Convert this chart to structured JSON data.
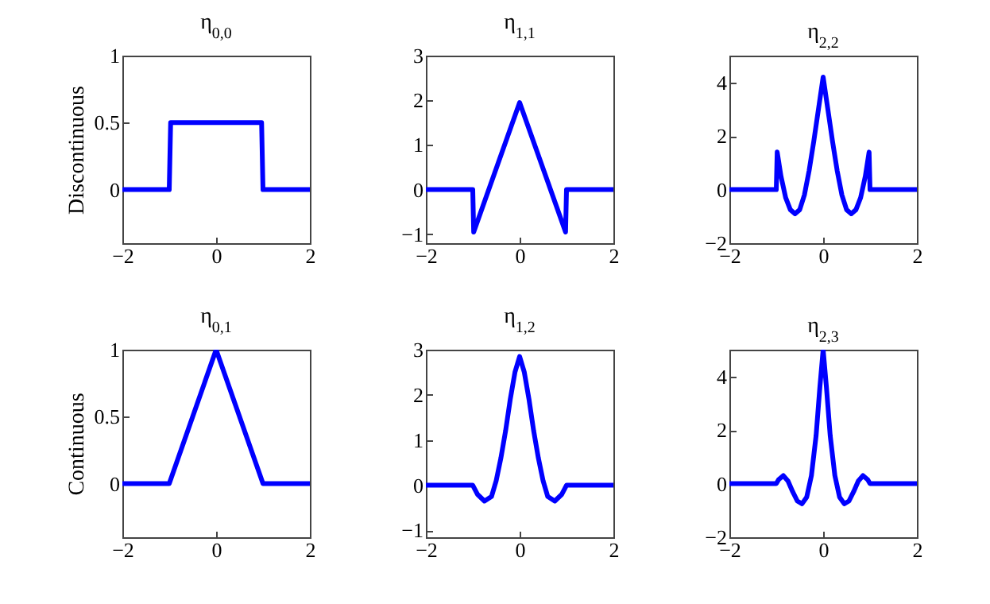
{
  "chart_data": [
    {
      "type": "line",
      "title": "η$_{0,0}$",
      "ylabel": "Discontinuous",
      "xlim": [
        -2,
        2
      ],
      "xticks": [
        -2,
        0,
        2
      ],
      "ylim": [
        -0.4,
        1
      ],
      "yticks": [
        0,
        0.5,
        1
      ],
      "series": [
        {
          "color": "#0000ff",
          "x": [
            -2,
            -1,
            -0.97,
            0.97,
            1,
            2
          ],
          "values": [
            0,
            0,
            0.5,
            0.5,
            0,
            0
          ]
        }
      ]
    },
    {
      "type": "line",
      "title": "η$_{1,1}$",
      "xlim": [
        -2,
        2
      ],
      "xticks": [
        -2,
        0,
        2
      ],
      "ylim": [
        -1.2,
        3
      ],
      "yticks": [
        -1,
        0,
        1,
        2,
        3
      ],
      "series": [
        {
          "color": "#0000ff",
          "x": [
            -2,
            -1,
            -0.98,
            0,
            0.98,
            1,
            2
          ],
          "values": [
            0,
            0,
            -0.95,
            1.95,
            -0.95,
            0,
            0
          ]
        }
      ]
    },
    {
      "type": "line",
      "title": "η$_{2,2}$",
      "xlim": [
        -2,
        2
      ],
      "xticks": [
        -2,
        0,
        2
      ],
      "ylim": [
        -2,
        5
      ],
      "yticks": [
        -2,
        0,
        2,
        4
      ],
      "series": [
        {
          "color": "#0000ff",
          "x": [
            -2,
            -1,
            -0.98,
            -0.9,
            -0.8,
            -0.7,
            -0.6,
            -0.5,
            -0.4,
            -0.3,
            -0.2,
            -0.1,
            0,
            0.1,
            0.2,
            0.3,
            0.4,
            0.5,
            0.6,
            0.7,
            0.8,
            0.9,
            0.98,
            1,
            2
          ],
          "values": [
            0,
            0,
            1.4,
            0.5,
            -0.3,
            -0.75,
            -0.9,
            -0.75,
            -0.2,
            0.7,
            1.8,
            3.0,
            4.2,
            3.0,
            1.8,
            0.7,
            -0.2,
            -0.75,
            -0.9,
            -0.75,
            -0.3,
            0.5,
            1.4,
            0,
            0
          ]
        }
      ]
    },
    {
      "type": "line",
      "title": "η$_{0,1}$",
      "ylabel": "Continuous",
      "xlim": [
        -2,
        2
      ],
      "xticks": [
        -2,
        0,
        2
      ],
      "ylim": [
        -0.4,
        1
      ],
      "yticks": [
        0,
        0.5,
        1
      ],
      "series": [
        {
          "color": "#0000ff",
          "x": [
            -2,
            -1,
            0,
            1,
            2
          ],
          "values": [
            0,
            0,
            1,
            0,
            0
          ]
        }
      ]
    },
    {
      "type": "line",
      "title": "η$_{1,2}$",
      "xlim": [
        -2,
        2
      ],
      "xticks": [
        -2,
        0,
        2
      ],
      "ylim": [
        -1.15,
        3
      ],
      "yticks": [
        -1,
        0,
        1,
        2,
        3
      ],
      "series": [
        {
          "color": "#0000ff",
          "x": [
            -2,
            -1,
            -0.9,
            -0.75,
            -0.6,
            -0.5,
            -0.4,
            -0.3,
            -0.2,
            -0.1,
            0,
            0.1,
            0.2,
            0.3,
            0.4,
            0.5,
            0.6,
            0.75,
            0.9,
            1,
            2
          ],
          "values": [
            0,
            0,
            -0.2,
            -0.35,
            -0.25,
            0.1,
            0.6,
            1.2,
            1.9,
            2.5,
            2.85,
            2.5,
            1.9,
            1.2,
            0.6,
            0.1,
            -0.25,
            -0.35,
            -0.2,
            0,
            0
          ]
        }
      ]
    },
    {
      "type": "line",
      "title": "η$_{2,3}$",
      "xlim": [
        -2,
        2
      ],
      "xticks": [
        -2,
        0,
        2
      ],
      "ylim": [
        -2,
        5
      ],
      "yticks": [
        -2,
        0,
        2,
        4
      ],
      "series": [
        {
          "color": "#0000ff",
          "x": [
            -2,
            -1,
            -0.95,
            -0.85,
            -0.75,
            -0.65,
            -0.55,
            -0.45,
            -0.35,
            -0.25,
            -0.15,
            -0.07,
            0,
            0.07,
            0.15,
            0.25,
            0.35,
            0.45,
            0.55,
            0.65,
            0.75,
            0.85,
            0.95,
            1,
            2
          ],
          "values": [
            0,
            0,
            0.15,
            0.3,
            0.1,
            -0.3,
            -0.65,
            -0.75,
            -0.5,
            0.3,
            1.8,
            3.6,
            5,
            3.6,
            1.8,
            0.3,
            -0.5,
            -0.75,
            -0.65,
            -0.3,
            0.1,
            0.3,
            0.15,
            0,
            0
          ]
        }
      ]
    }
  ]
}
